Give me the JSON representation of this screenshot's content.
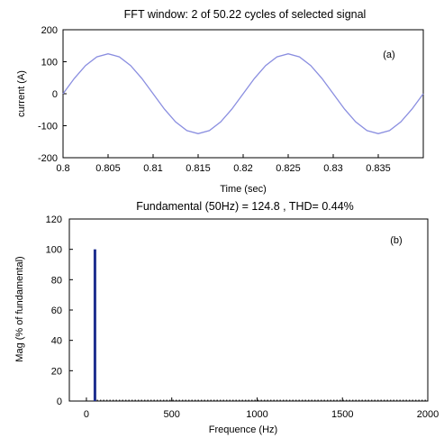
{
  "chart_data": [
    {
      "id": "a",
      "type": "line",
      "panel_label": "(a)",
      "title": "FFT window: 2 of 50.22 cycles of selected signal",
      "xlabel": "Time (sec)",
      "ylabel": "current (A)",
      "xlim": [
        0.8,
        0.84
      ],
      "ylim": [
        -200,
        200
      ],
      "xticks": [
        0.8,
        0.805,
        0.81,
        0.815,
        0.82,
        0.825,
        0.83,
        0.835
      ],
      "xtick_labels": [
        "0.8",
        "0.805",
        "0.81",
        "0.815",
        "0.82",
        "0.825",
        "0.83",
        "0.835"
      ],
      "yticks": [
        200,
        100,
        0,
        -100,
        -200
      ],
      "ytick_labels": [
        "200",
        "100",
        "0",
        "-100",
        "-200"
      ],
      "grid": false,
      "series": [
        {
          "color": "#8a8ee0",
          "x": [
            0.8,
            0.80125,
            0.8025,
            0.80375,
            0.805,
            0.80625,
            0.8075,
            0.80875,
            0.81,
            0.81125,
            0.8125,
            0.81375,
            0.815,
            0.81625,
            0.8175,
            0.81875,
            0.82,
            0.82125,
            0.8225,
            0.82375,
            0.825,
            0.82625,
            0.8275,
            0.82875,
            0.83,
            0.83125,
            0.8325,
            0.83375,
            0.835,
            0.83625,
            0.8375,
            0.83875,
            0.84
          ],
          "y": [
            0,
            47.8,
            88.2,
            115.3,
            124.8,
            115.3,
            88.2,
            47.8,
            0,
            -47.8,
            -88.2,
            -115.3,
            -124.8,
            -115.3,
            -88.2,
            -47.8,
            0,
            47.8,
            88.2,
            115.3,
            124.8,
            115.3,
            88.2,
            47.8,
            0,
            -47.8,
            -88.2,
            -115.3,
            -124.8,
            -115.3,
            -88.2,
            -47.8,
            0
          ]
        }
      ]
    },
    {
      "id": "b",
      "type": "bar",
      "panel_label": "(b)",
      "title": "Fundamental (50Hz) = 124.8 , THD= 0.44%",
      "xlabel": "Frequence (Hz)",
      "ylabel": "Mag (% of fundamental)",
      "xlim": [
        -100,
        2000
      ],
      "ylim": [
        0,
        120
      ],
      "xticks": [
        0,
        500,
        1000,
        1500,
        2000
      ],
      "xtick_labels": [
        "0",
        "500",
        "1000",
        "1500",
        "2000"
      ],
      "yticks": [
        120,
        100,
        80,
        60,
        40,
        20,
        0
      ],
      "ytick_labels": [
        "120",
        "100",
        "80",
        "60",
        "40",
        "20",
        "0"
      ],
      "grid": false,
      "bar_color": "#1f2f8f",
      "bars": [
        {
          "x": 50,
          "y": 100
        }
      ]
    }
  ]
}
